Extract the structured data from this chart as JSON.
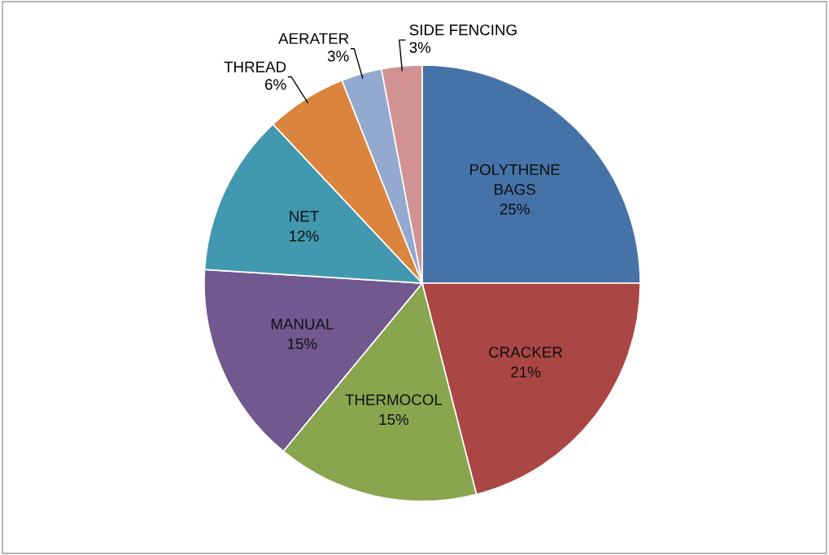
{
  "chart_data": {
    "type": "pie",
    "categories": [
      "POLYTHENE BAGS",
      "CRACKER",
      "THERMOCOL",
      "MANUAL",
      "NET",
      "THREAD",
      "AERATER",
      "SIDE FENCING"
    ],
    "values": [
      25,
      21,
      15,
      15,
      12,
      6,
      3,
      3
    ],
    "colors": [
      "#4572a7",
      "#aa4643",
      "#89a54e",
      "#71588f",
      "#4198af",
      "#db843d",
      "#93a9cf",
      "#d19392"
    ],
    "value_labels": [
      "25%",
      "21%",
      "15%",
      "15%",
      "12%",
      "6%",
      "3%",
      "3%"
    ],
    "legend": false
  }
}
